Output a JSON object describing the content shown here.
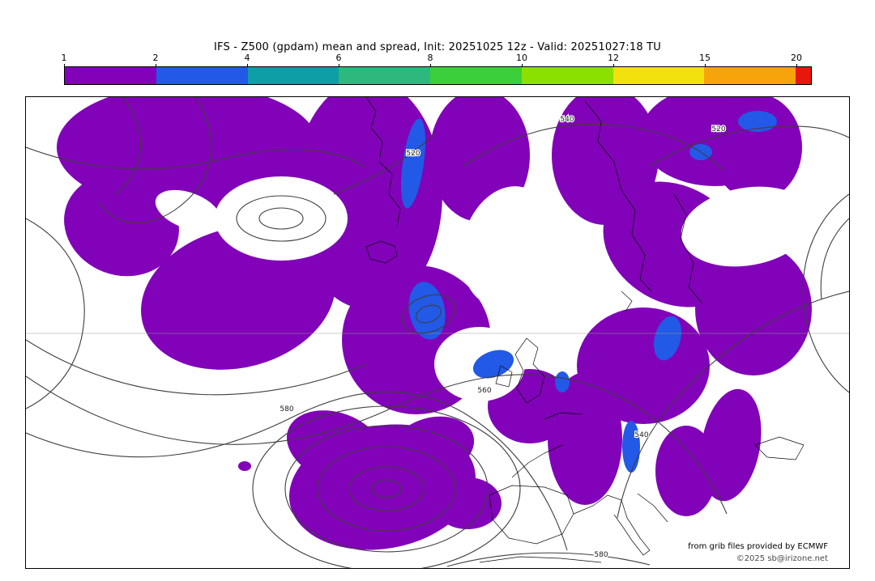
{
  "title": "IFS - Z500 (gpdam) mean and spread, Init: 20251025 12z - Valid: 20251027:18 TU",
  "colorbar": {
    "tick_labels": [
      "1",
      "2",
      "4",
      "6",
      "8",
      "10",
      "12",
      "15",
      "20"
    ],
    "segments": [
      {
        "range": "1-2",
        "color": "#8102b8"
      },
      {
        "range": "2-4",
        "color": "#2259e6"
      },
      {
        "range": "4-6",
        "color": "#0d9ea6"
      },
      {
        "range": "6-8",
        "color": "#2eb87e"
      },
      {
        "range": "8-10",
        "color": "#3bcf3b"
      },
      {
        "range": "10-12",
        "color": "#8ce000"
      },
      {
        "range": "12-15",
        "color": "#f2e10c"
      },
      {
        "range": "15-20",
        "color": "#f7a40a"
      },
      {
        "range": ">20",
        "color": "#e8160c"
      }
    ]
  },
  "map": {
    "colors": {
      "spread_1_2": "#8102b8",
      "spread_2_4": "#2259e6",
      "contour": "#3f3f3f",
      "coastline": "#000000"
    },
    "contour_labels": [
      "520",
      "520",
      "540",
      "540",
      "560",
      "580",
      "580"
    ],
    "attribution_line1": "from grib files provided by ECMWF",
    "attribution_line2": "©2025 sb@irizone.net"
  },
  "chart_data": {
    "type": "heatmap",
    "title": "IFS - Z500 (gpdam) mean and spread, Init: 20251025 12z - Valid: 20251027:18 TU",
    "model": "IFS",
    "field": "Z500 mean and spread",
    "units": "gpdam",
    "init": "20251025 12z",
    "valid": "20251027:18 TU",
    "colorbar": {
      "levels": [
        1,
        2,
        4,
        6,
        8,
        10,
        12,
        15,
        20
      ],
      "colors": [
        "#8102b8",
        "#2259e6",
        "#0d9ea6",
        "#2eb87e",
        "#3bcf3b",
        "#8ce000",
        "#f2e10c",
        "#f7a40a",
        "#e8160c"
      ],
      "position": "top",
      "meaning": "ensemble spread in gpdam; values above 20 shown red"
    },
    "mean_contours": {
      "labeled_values": [
        520,
        540,
        560,
        580
      ],
      "style": "solid dark geopotential-height contour lines over Europe / North Atlantic map"
    },
    "shading_observed": [
      {
        "range": "1-2",
        "color": "#8102b8",
        "coverage": "large purple region covering most of the North Atlantic, Scandinavia and central/eastern Europe plus a closed blob near Iberia/Azores"
      },
      {
        "range": "2-4",
        "color": "#2259e6",
        "coverage": "small embedded blue patches (east Greenland coast, low center south of Iceland, Baltic area, eastern Europe, top-right corner)"
      }
    ],
    "legend_position": "top colorbar",
    "grid": false
  }
}
